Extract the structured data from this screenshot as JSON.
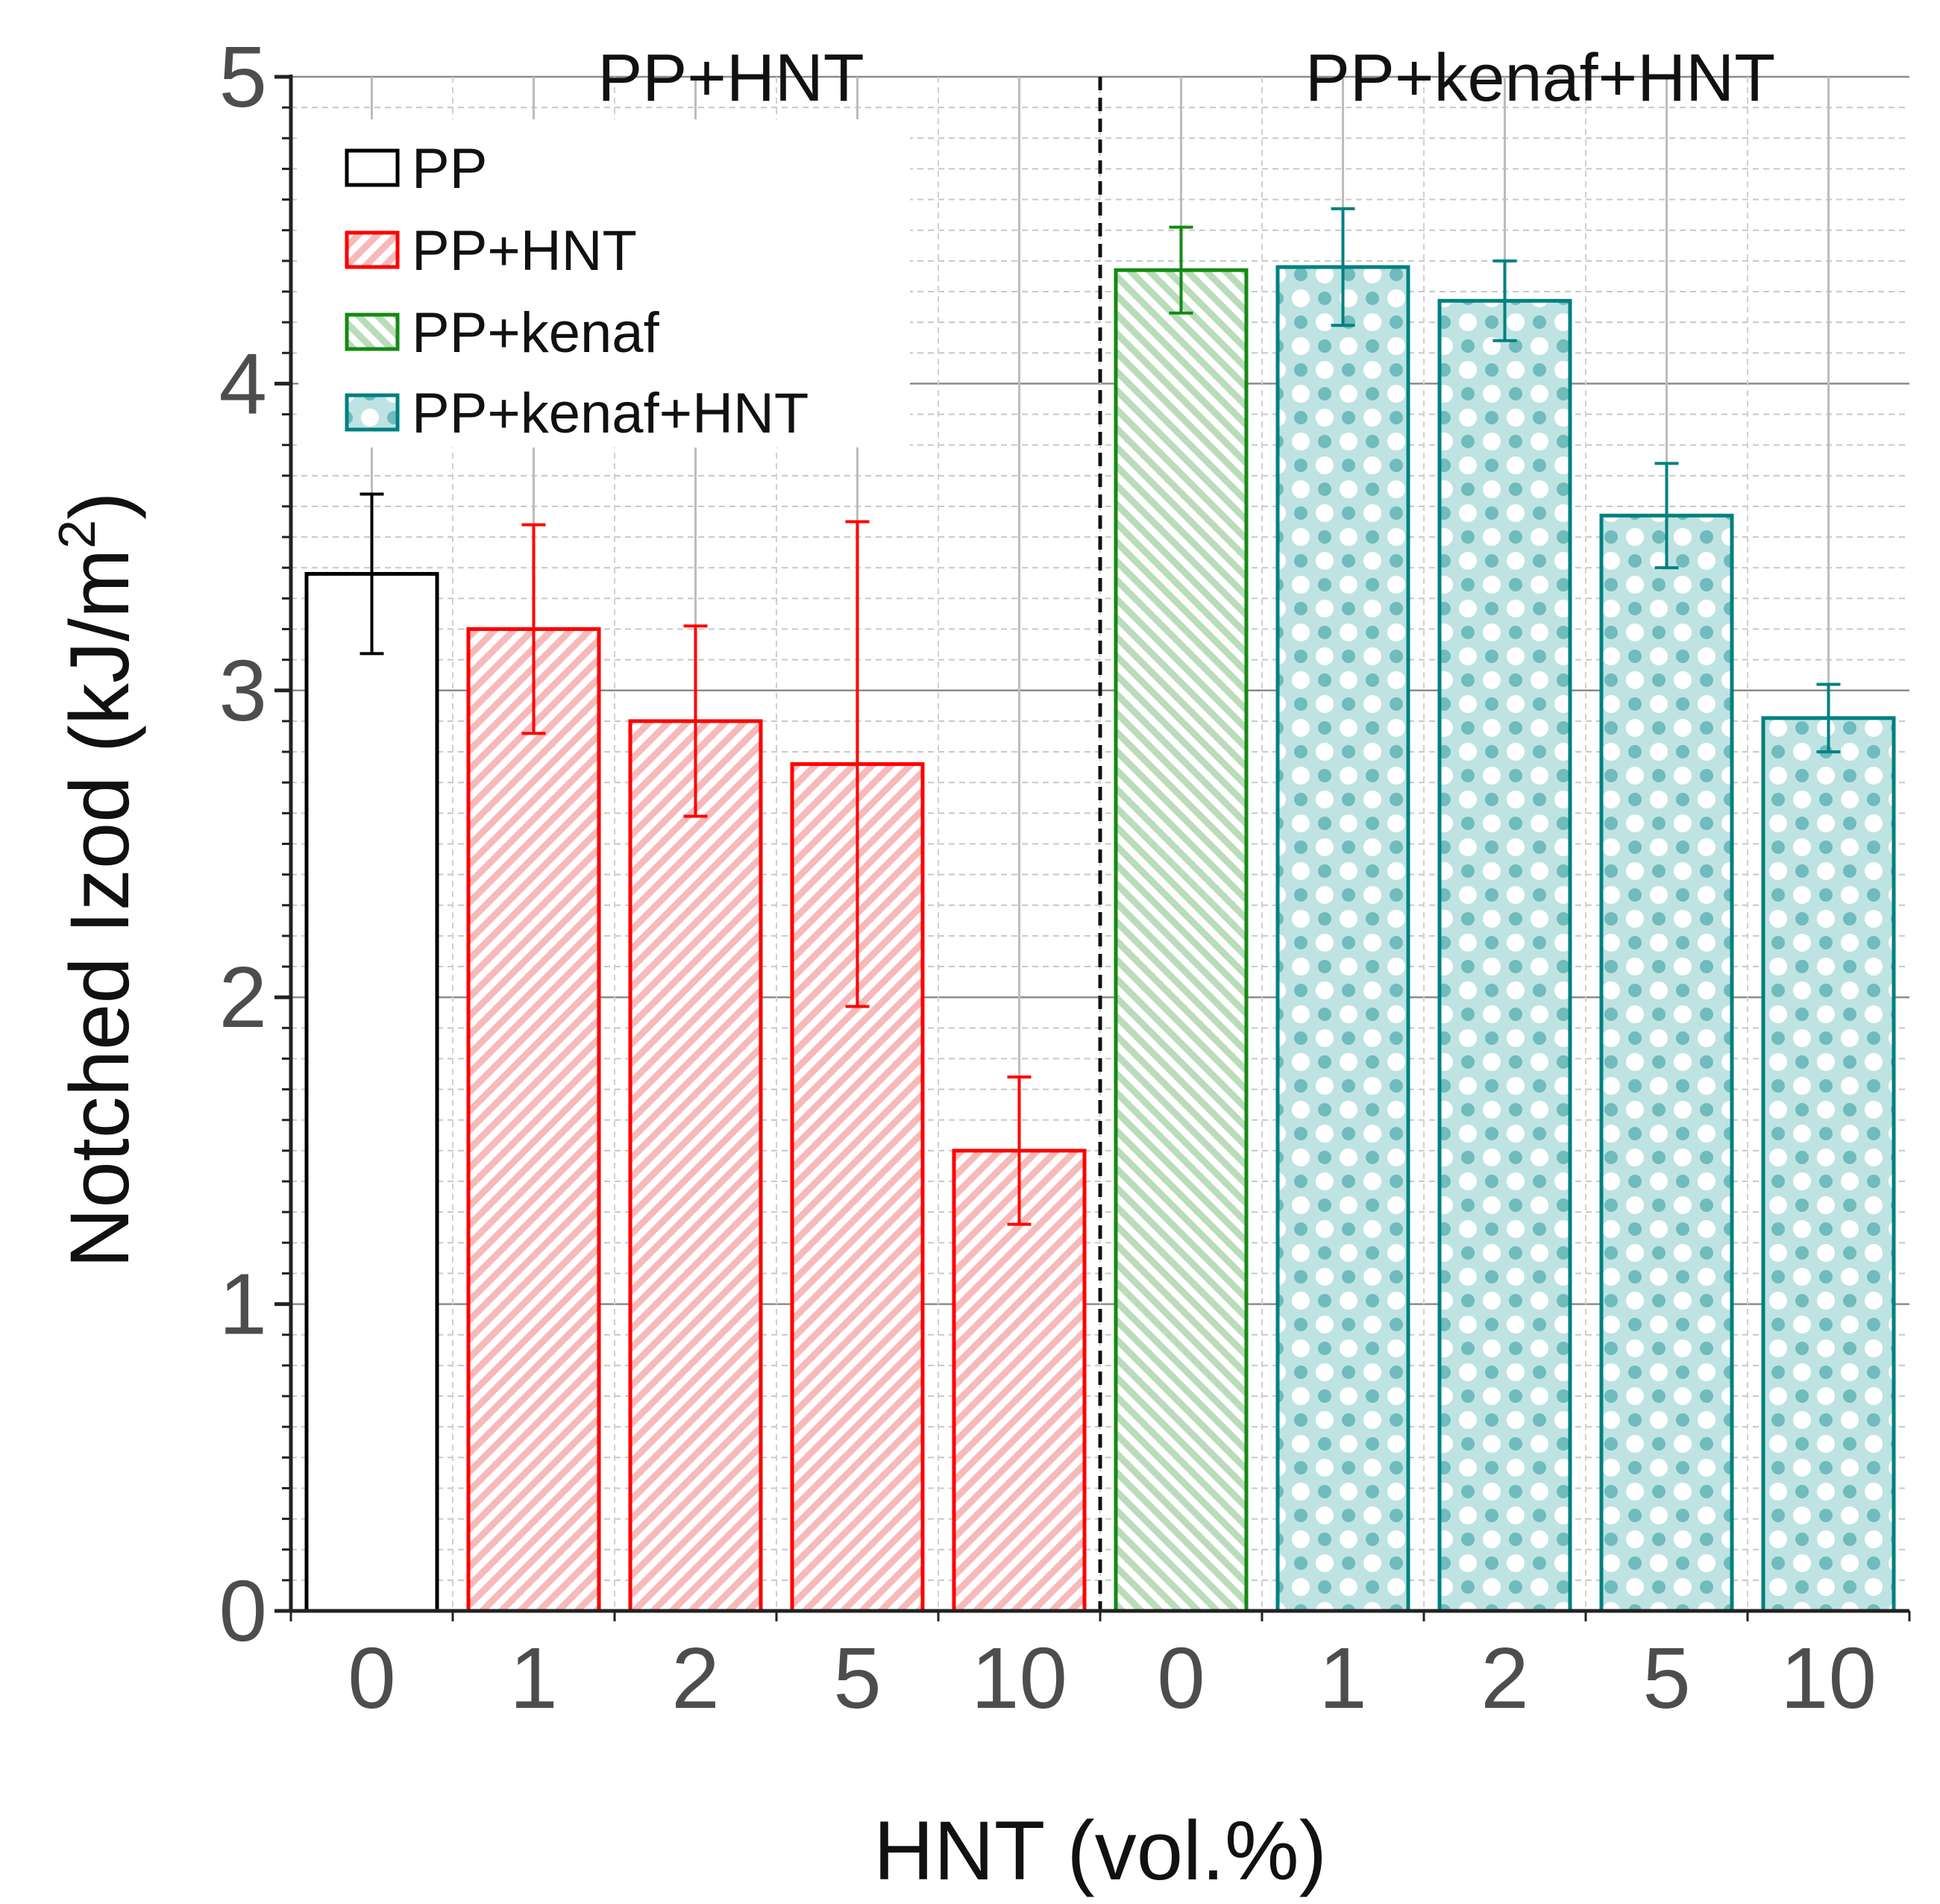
{
  "chart_data": {
    "type": "bar",
    "ylabel": "Notched Izod (kJ/m²)",
    "ylabel_main": "Notched Izod (kJ/m",
    "ylabel_sup": "2",
    "ylabel_close": ")",
    "xlabel": "HNT (vol.%)",
    "ylim": [
      0,
      5
    ],
    "y_ticks": [
      "0",
      "1",
      "2",
      "3",
      "4",
      "5"
    ],
    "grid": true,
    "group_titles": [
      "PP+HNT",
      "PP+kenaf+HNT"
    ],
    "divider_after_index": 4,
    "categories": [
      "0",
      "1",
      "2",
      "5",
      "10",
      "0",
      "1",
      "2",
      "5",
      "10"
    ],
    "bars": [
      {
        "category": "0",
        "value": 3.38,
        "error": 0.26,
        "series": "PP"
      },
      {
        "category": "1",
        "value": 3.2,
        "error": 0.34,
        "series": "PP+HNT"
      },
      {
        "category": "2",
        "value": 2.9,
        "error": 0.31,
        "series": "PP+HNT"
      },
      {
        "category": "5",
        "value": 2.76,
        "error": 0.79,
        "series": "PP+HNT"
      },
      {
        "category": "10",
        "value": 1.5,
        "error": 0.24,
        "series": "PP+HNT"
      },
      {
        "category": "0",
        "value": 4.37,
        "error": 0.14,
        "series": "PP+kenaf"
      },
      {
        "category": "1",
        "value": 4.38,
        "error": 0.19,
        "series": "PP+kenaf+HNT"
      },
      {
        "category": "2",
        "value": 4.27,
        "error": 0.13,
        "series": "PP+kenaf+HNT"
      },
      {
        "category": "5",
        "value": 3.57,
        "error": 0.17,
        "series": "PP+kenaf+HNT"
      },
      {
        "category": "10",
        "value": 2.91,
        "error": 0.11,
        "series": "PP+kenaf+HNT"
      }
    ],
    "legend": {
      "position": "top-left",
      "entries": [
        {
          "label": "PP",
          "color": "#000000",
          "pattern": "none"
        },
        {
          "label": "PP+HNT",
          "color": "#ff0000",
          "pattern": "diagonal"
        },
        {
          "label": "PP+kenaf",
          "color": "#138a13",
          "pattern": "diagonal-reverse"
        },
        {
          "label": "PP+kenaf+HNT",
          "color": "#008080",
          "pattern": "checker"
        }
      ]
    }
  }
}
